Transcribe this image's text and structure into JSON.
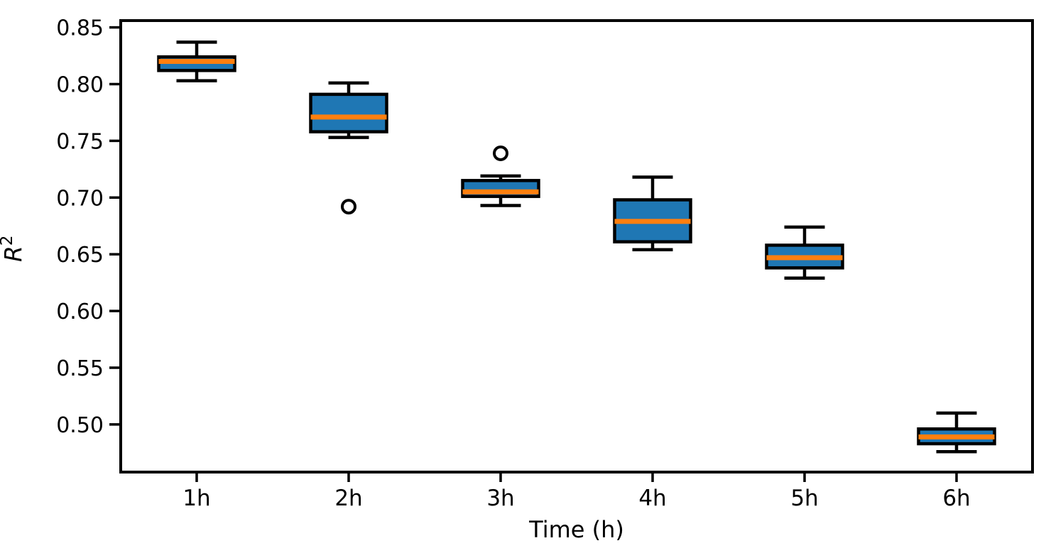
{
  "chart_data": {
    "type": "boxplot",
    "title": "",
    "xlabel": "Time (h)",
    "ylabel_base": "R",
    "ylabel_superscript": "2",
    "ylabel_display": "R²",
    "categories": [
      "1h",
      "2h",
      "3h",
      "4h",
      "5h",
      "6h"
    ],
    "boxes": [
      {
        "label": "1h",
        "whislo": 0.803,
        "q1": 0.812,
        "med": 0.82,
        "q3": 0.824,
        "whishi": 0.837,
        "fliers": []
      },
      {
        "label": "2h",
        "whislo": 0.753,
        "q1": 0.758,
        "med": 0.771,
        "q3": 0.791,
        "whishi": 0.801,
        "fliers": [
          0.692
        ]
      },
      {
        "label": "3h",
        "whislo": 0.693,
        "q1": 0.701,
        "med": 0.705,
        "q3": 0.715,
        "whishi": 0.719,
        "fliers": [
          0.739
        ]
      },
      {
        "label": "4h",
        "whislo": 0.654,
        "q1": 0.661,
        "med": 0.679,
        "q3": 0.698,
        "whishi": 0.718,
        "fliers": []
      },
      {
        "label": "5h",
        "whislo": 0.629,
        "q1": 0.638,
        "med": 0.647,
        "q3": 0.658,
        "whishi": 0.674,
        "fliers": []
      },
      {
        "label": "6h",
        "whislo": 0.476,
        "q1": 0.483,
        "med": 0.489,
        "q3": 0.496,
        "whishi": 0.51,
        "fliers": []
      }
    ],
    "ylim": [
      0.458,
      0.856
    ],
    "yticks": [
      0.5,
      0.55,
      0.6,
      0.65,
      0.7,
      0.75,
      0.8,
      0.85
    ],
    "ytick_labels": [
      "0.50",
      "0.55",
      "0.60",
      "0.65",
      "0.70",
      "0.75",
      "0.80",
      "0.85"
    ],
    "grid": false,
    "legend": false,
    "colors": {
      "box_fill": "#1f77b4",
      "median": "#ff7f0e",
      "edge": "#000000",
      "flier_fill": "#ffffff",
      "background": "#ffffff"
    }
  }
}
